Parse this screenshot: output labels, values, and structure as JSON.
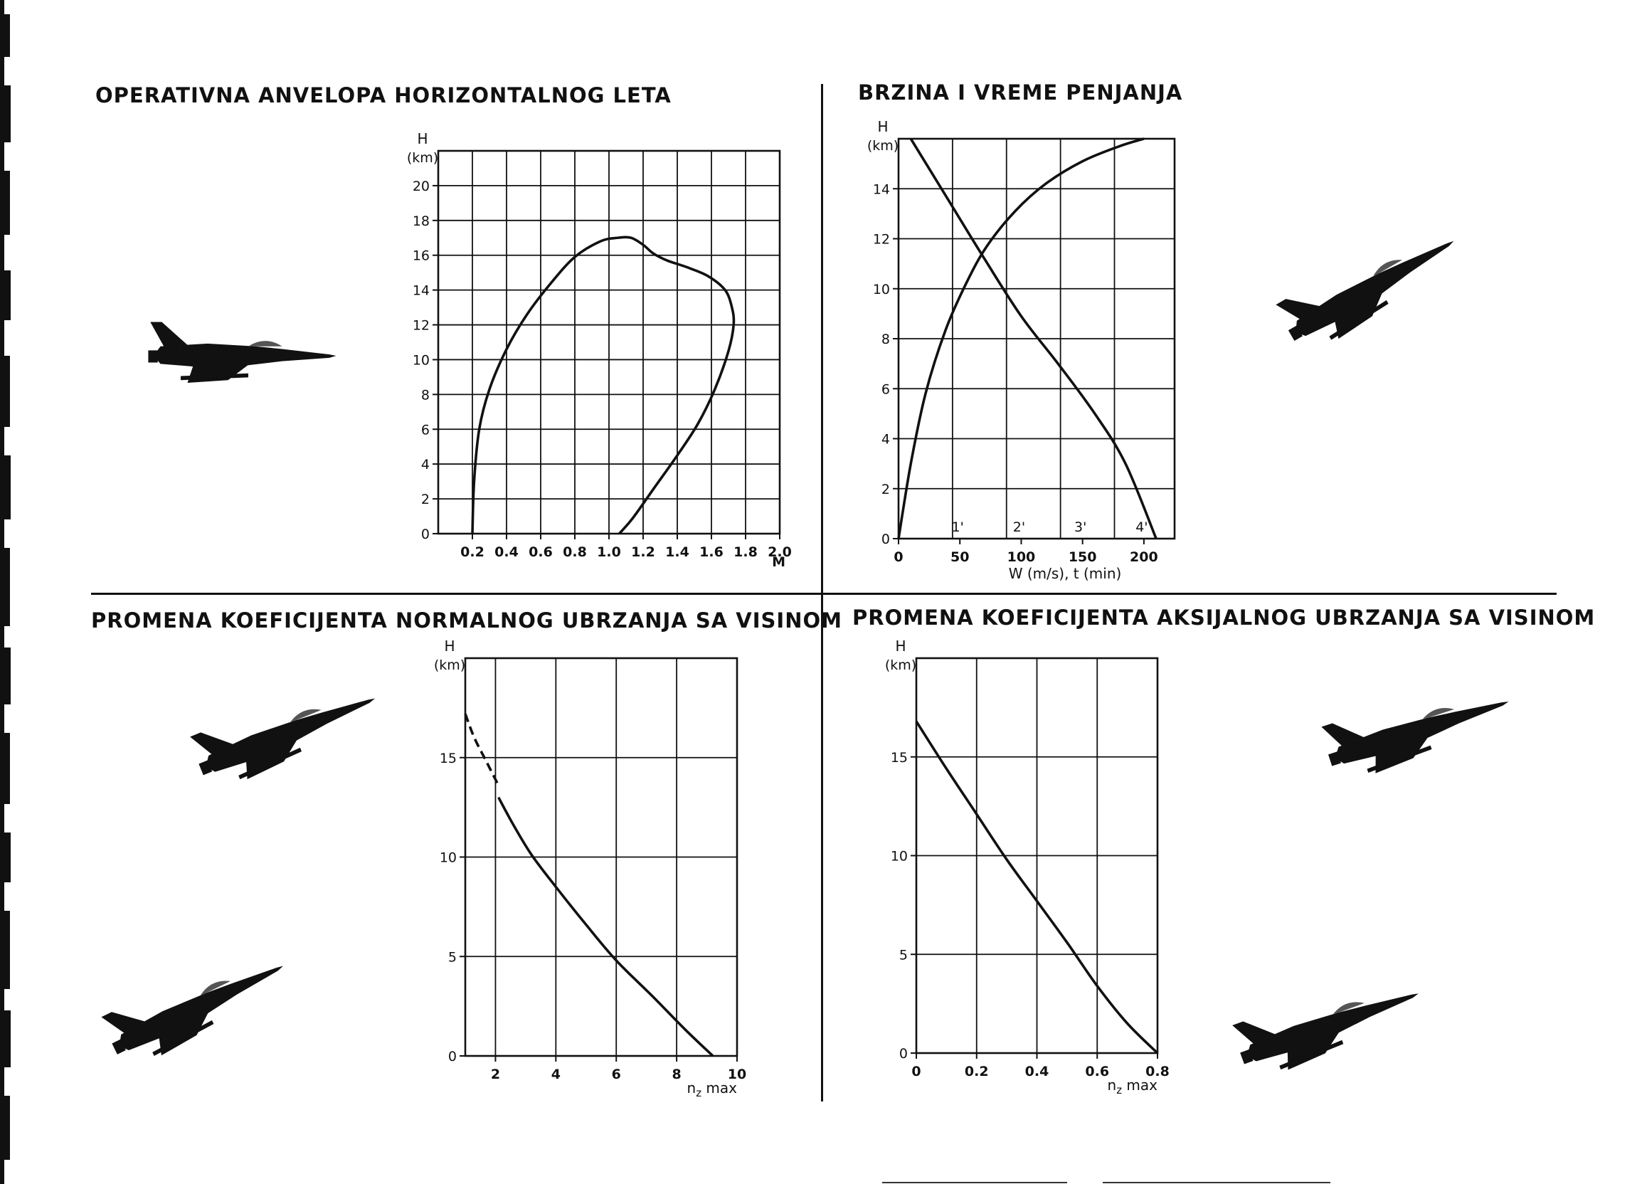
{
  "panels": {
    "envelope": {
      "title": "OPERATIVNA ANVELOPA HORIZONTALNOG LETA"
    },
    "climb": {
      "title": "BRZINA I VREME PENJANJA"
    },
    "normal": {
      "title": "PROMENA KOEFICIJENTA NORMALNOG UBRZANJA SA VISINOM"
    },
    "axial": {
      "title": "PROMENA KOEFICIJENTA AKSIJALNOG UBRZANJA SA VISINOM"
    }
  },
  "chart_data": [
    {
      "id": "envelope",
      "type": "line",
      "title": "OPERATIVNA ANVELOPA HORIZONTALNOG LETA",
      "ylabel": "H",
      "yunit": "(km)",
      "xlabel": "M",
      "xlim": [
        0.0,
        2.0
      ],
      "ylim": [
        0,
        22
      ],
      "xticks": [
        0.2,
        0.4,
        0.6,
        0.8,
        1.0,
        1.2,
        1.4,
        1.6,
        1.8,
        2.0
      ],
      "xtick_labels": [
        "0.2",
        "0.4",
        "0.6",
        "0.8",
        "1.0",
        "1.2",
        "1.4",
        "1.6",
        "1.8",
        "2.0"
      ],
      "yticks": [
        0,
        2,
        4,
        6,
        8,
        10,
        12,
        14,
        16,
        18,
        20
      ],
      "ytick_labels": [
        "0",
        "2",
        "4",
        "6",
        "8",
        "10",
        "12",
        "14",
        "16",
        "18",
        "20"
      ],
      "grid": true,
      "series": [
        {
          "x": [
            0.2,
            0.21,
            0.24,
            0.3,
            0.4,
            0.52,
            0.66,
            0.8,
            0.95,
            1.05,
            1.13,
            1.2,
            1.26,
            1.34,
            1.46,
            1.58,
            1.68,
            1.72,
            1.73,
            1.7,
            1.62,
            1.52,
            1.4,
            1.27,
            1.14,
            1.06
          ],
          "y": [
            0,
            3,
            6,
            8.3,
            10.6,
            12.6,
            14.4,
            15.9,
            16.8,
            17.0,
            17.0,
            16.6,
            16.1,
            15.7,
            15.3,
            14.8,
            14.0,
            13.0,
            12.0,
            10.5,
            8.3,
            6.3,
            4.5,
            2.7,
            0.9,
            0
          ]
        }
      ]
    },
    {
      "id": "climb",
      "type": "line",
      "title": "BRZINA I VREME PENJANJA",
      "ylabel": "H",
      "yunit": "(km)",
      "xlabel": "W (m/s), t (min)",
      "xlim": [
        0,
        225
      ],
      "ylim": [
        0,
        16
      ],
      "xticks": [
        0,
        50,
        100,
        150,
        200
      ],
      "xtick_labels": [
        "0",
        "50",
        "100",
        "150",
        "200"
      ],
      "time_ticks": [
        50,
        100,
        150,
        200
      ],
      "time_tick_labels": [
        "1'",
        "2'",
        "3'",
        "4'"
      ],
      "yticks": [
        0,
        2,
        4,
        6,
        8,
        10,
        12,
        14
      ],
      "ytick_labels": [
        "0",
        "2",
        "4",
        "6",
        "8",
        "10",
        "12",
        "14"
      ],
      "grid": true,
      "series": [
        {
          "x": [
            0,
            10,
            22,
            38,
            55,
            72,
            95,
            120,
            150,
            180,
            200
          ],
          "y": [
            0,
            3,
            5.8,
            8.3,
            10.2,
            11.7,
            13.1,
            14.2,
            15.1,
            15.7,
            16.0
          ]
        },
        {
          "x": [
            10,
            40,
            70,
            100,
            130,
            160,
            185,
            210
          ],
          "y": [
            16.0,
            13.6,
            11.2,
            8.9,
            7.0,
            5.0,
            3.0,
            0
          ]
        }
      ]
    },
    {
      "id": "normal",
      "type": "line",
      "ylabel": "H",
      "yunit": "(km)",
      "xlabel": "n_z max",
      "xlim": [
        1,
        10
      ],
      "ylim": [
        0,
        20
      ],
      "xticks": [
        2,
        4,
        6,
        8,
        10
      ],
      "xtick_labels": [
        "2",
        "4",
        "6",
        "8",
        "10"
      ],
      "yticks": [
        0,
        5,
        10,
        15
      ],
      "ytick_labels": [
        "0",
        "5",
        "10",
        "15"
      ],
      "grid": true,
      "series": [
        {
          "style": "dashed",
          "x": [
            1.0,
            1.3,
            1.7,
            2.1
          ],
          "y": [
            17.2,
            16.0,
            14.8,
            13.6
          ]
        },
        {
          "style": "solid",
          "x": [
            2.1,
            2.6,
            3.2,
            4.0,
            5.0,
            6.0,
            7.2,
            8.3,
            9.2
          ],
          "y": [
            13.0,
            11.6,
            10.1,
            8.5,
            6.6,
            4.8,
            3.0,
            1.3,
            0
          ]
        }
      ]
    },
    {
      "id": "axial",
      "type": "line",
      "ylabel": "H",
      "yunit": "(km)",
      "xlabel": "n_z max",
      "xlim": [
        0,
        0.8
      ],
      "ylim": [
        0,
        20
      ],
      "xticks": [
        0,
        0.2,
        0.4,
        0.6,
        0.8
      ],
      "xtick_labels": [
        "0",
        "0.2",
        "0.4",
        "0.6",
        "0.8"
      ],
      "yticks": [
        0,
        5,
        10,
        15
      ],
      "ytick_labels": [
        "0",
        "5",
        "10",
        "15"
      ],
      "grid": true,
      "series": [
        {
          "x": [
            0.0,
            0.1,
            0.2,
            0.3,
            0.4,
            0.5,
            0.6,
            0.7,
            0.8
          ],
          "y": [
            16.8,
            14.4,
            12.1,
            9.8,
            7.7,
            5.6,
            3.4,
            1.5,
            0
          ]
        }
      ]
    }
  ],
  "icons": {
    "aircraft": "jet-fighter-icon",
    "ink": "#111111"
  }
}
